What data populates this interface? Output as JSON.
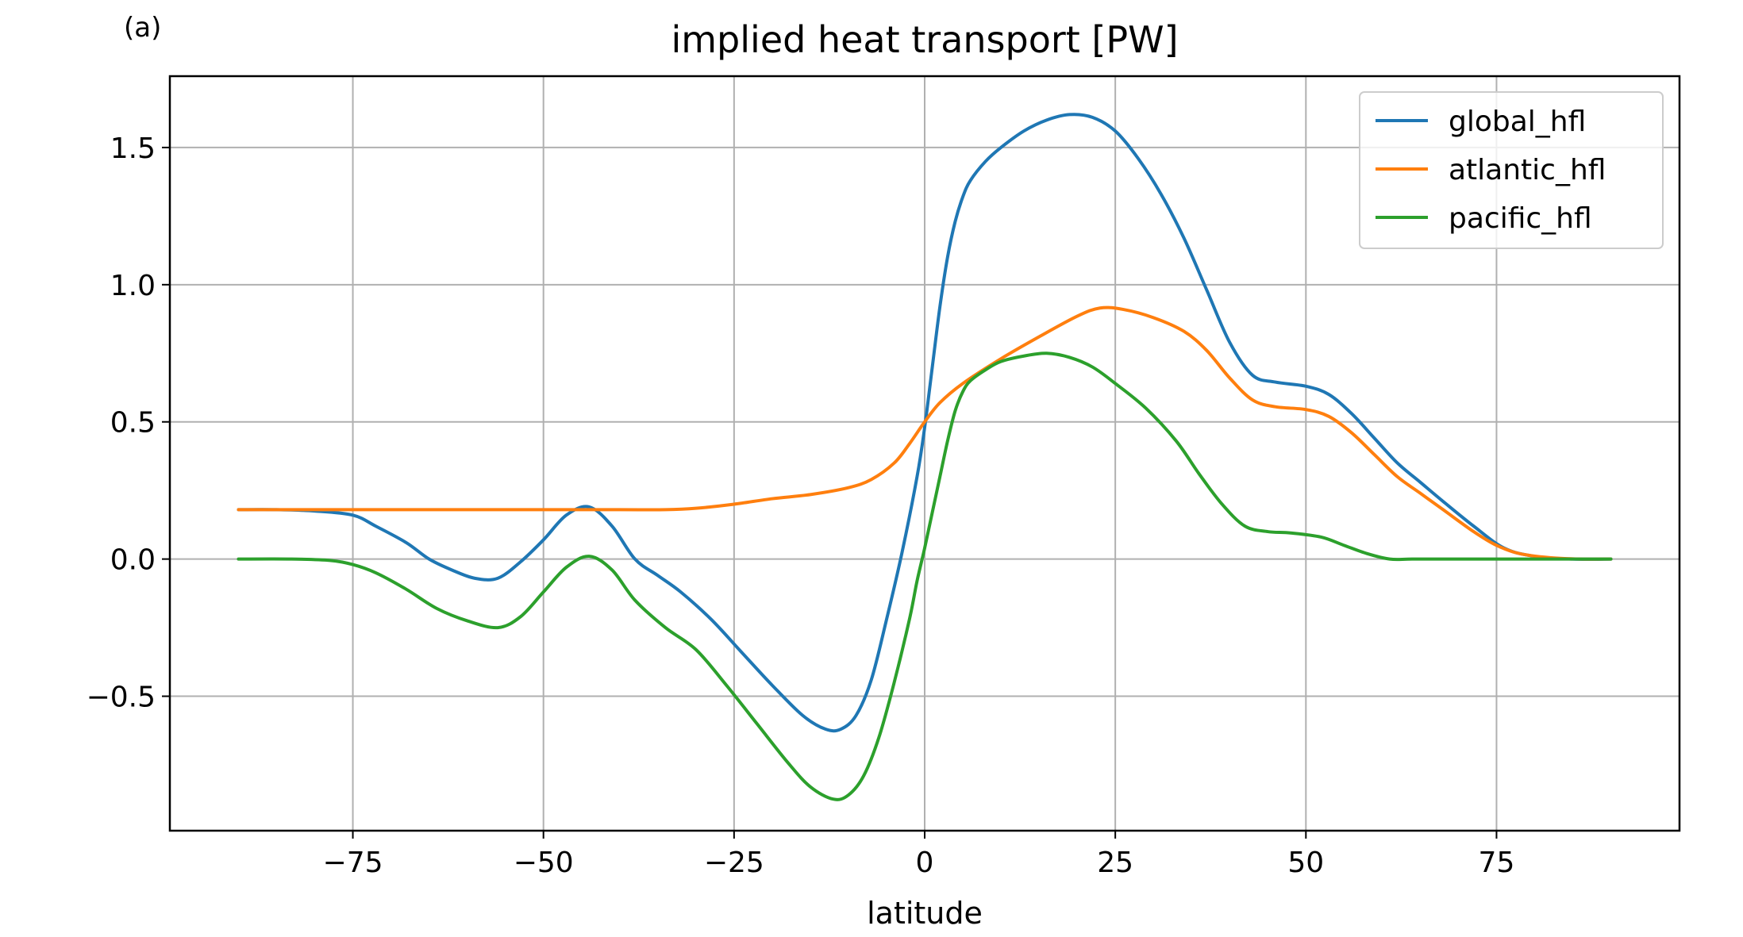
{
  "panel_label": "(a)",
  "chart_data": {
    "type": "line",
    "title": "implied heat transport [PW]",
    "xlabel": "latitude",
    "ylabel": "",
    "xlim": [
      -99,
      99
    ],
    "ylim": [
      -0.99,
      1.76
    ],
    "xticks": [
      -75,
      -50,
      -25,
      0,
      25,
      50,
      75
    ],
    "xtick_labels": [
      "−75",
      "−50",
      "−25",
      "0",
      "25",
      "50",
      "75"
    ],
    "yticks": [
      -0.5,
      0.0,
      0.5,
      1.0,
      1.5
    ],
    "ytick_labels": [
      "−0.5",
      "0.0",
      "0.5",
      "1.0",
      "1.5"
    ],
    "grid": true,
    "legend": "top-right",
    "series": [
      {
        "name": "global_hfl",
        "color": "#1f77b4",
        "x": [
          -90,
          -85,
          -80,
          -75,
          -72,
          -68,
          -65,
          -62,
          -59,
          -56,
          -53,
          -50,
          -47,
          -44,
          -41,
          -38,
          -35,
          -32,
          -28,
          -24,
          -20,
          -16,
          -13,
          -11,
          -9,
          -7,
          -5,
          -3,
          -1,
          0,
          1,
          2,
          3,
          4,
          5,
          6,
          8,
          10,
          13,
          16,
          19,
          22,
          25,
          28,
          31,
          34,
          37,
          40,
          43,
          46,
          50,
          53,
          56,
          59,
          62,
          65,
          68,
          72,
          76,
          80,
          85,
          90
        ],
        "y": [
          0.18,
          0.18,
          0.175,
          0.16,
          0.12,
          0.06,
          0.0,
          -0.04,
          -0.07,
          -0.07,
          -0.01,
          0.07,
          0.16,
          0.19,
          0.12,
          0.0,
          -0.06,
          -0.12,
          -0.22,
          -0.34,
          -0.46,
          -0.57,
          -0.62,
          -0.62,
          -0.57,
          -0.44,
          -0.22,
          0.02,
          0.3,
          0.48,
          0.7,
          0.92,
          1.1,
          1.23,
          1.32,
          1.38,
          1.45,
          1.5,
          1.56,
          1.6,
          1.62,
          1.61,
          1.56,
          1.46,
          1.33,
          1.17,
          0.98,
          0.79,
          0.67,
          0.645,
          0.63,
          0.6,
          0.53,
          0.44,
          0.35,
          0.28,
          0.21,
          0.12,
          0.04,
          0.01,
          0.0,
          0.0
        ]
      },
      {
        "name": "atlantic_hfl",
        "color": "#ff7f0e",
        "x": [
          -90,
          -80,
          -70,
          -60,
          -50,
          -40,
          -34,
          -30,
          -25,
          -20,
          -15,
          -10,
          -7,
          -4,
          -2,
          0,
          2,
          5,
          10,
          15,
          20,
          23,
          26,
          30,
          34,
          37,
          40,
          43,
          46,
          50,
          53,
          56,
          59,
          62,
          65,
          68,
          72,
          75,
          78,
          82,
          86,
          90
        ],
        "y": [
          0.18,
          0.18,
          0.18,
          0.18,
          0.18,
          0.18,
          0.18,
          0.185,
          0.2,
          0.22,
          0.235,
          0.26,
          0.29,
          0.35,
          0.42,
          0.5,
          0.57,
          0.64,
          0.73,
          0.81,
          0.885,
          0.915,
          0.91,
          0.88,
          0.83,
          0.76,
          0.66,
          0.58,
          0.555,
          0.545,
          0.52,
          0.46,
          0.38,
          0.3,
          0.24,
          0.18,
          0.1,
          0.05,
          0.02,
          0.005,
          0.0,
          0.0
        ]
      },
      {
        "name": "pacific_hfl",
        "color": "#2ca02c",
        "x": [
          -90,
          -83,
          -78,
          -75,
          -72,
          -68,
          -64,
          -60,
          -56,
          -53,
          -50,
          -47,
          -44,
          -41,
          -38,
          -34,
          -30,
          -26,
          -22,
          -18,
          -15,
          -12,
          -10,
          -8,
          -6,
          -4,
          -2,
          -1,
          0,
          1,
          2,
          3,
          4,
          5,
          6,
          8,
          10,
          13,
          16,
          19,
          22,
          25,
          29,
          33,
          36,
          39,
          42,
          45,
          48,
          52,
          55,
          58,
          61,
          64,
          70,
          75,
          80,
          85,
          90
        ],
        "y": [
          0.0,
          0.0,
          -0.005,
          -0.02,
          -0.05,
          -0.11,
          -0.18,
          -0.225,
          -0.25,
          -0.21,
          -0.12,
          -0.03,
          0.01,
          -0.04,
          -0.15,
          -0.25,
          -0.33,
          -0.46,
          -0.6,
          -0.74,
          -0.83,
          -0.875,
          -0.86,
          -0.79,
          -0.65,
          -0.45,
          -0.22,
          -0.08,
          0.04,
          0.17,
          0.3,
          0.43,
          0.54,
          0.61,
          0.65,
          0.69,
          0.72,
          0.74,
          0.75,
          0.735,
          0.7,
          0.64,
          0.55,
          0.43,
          0.31,
          0.2,
          0.12,
          0.1,
          0.095,
          0.08,
          0.05,
          0.02,
          0.0,
          0.0,
          0.0,
          0.0,
          0.0,
          0.0,
          0.0
        ]
      }
    ]
  }
}
